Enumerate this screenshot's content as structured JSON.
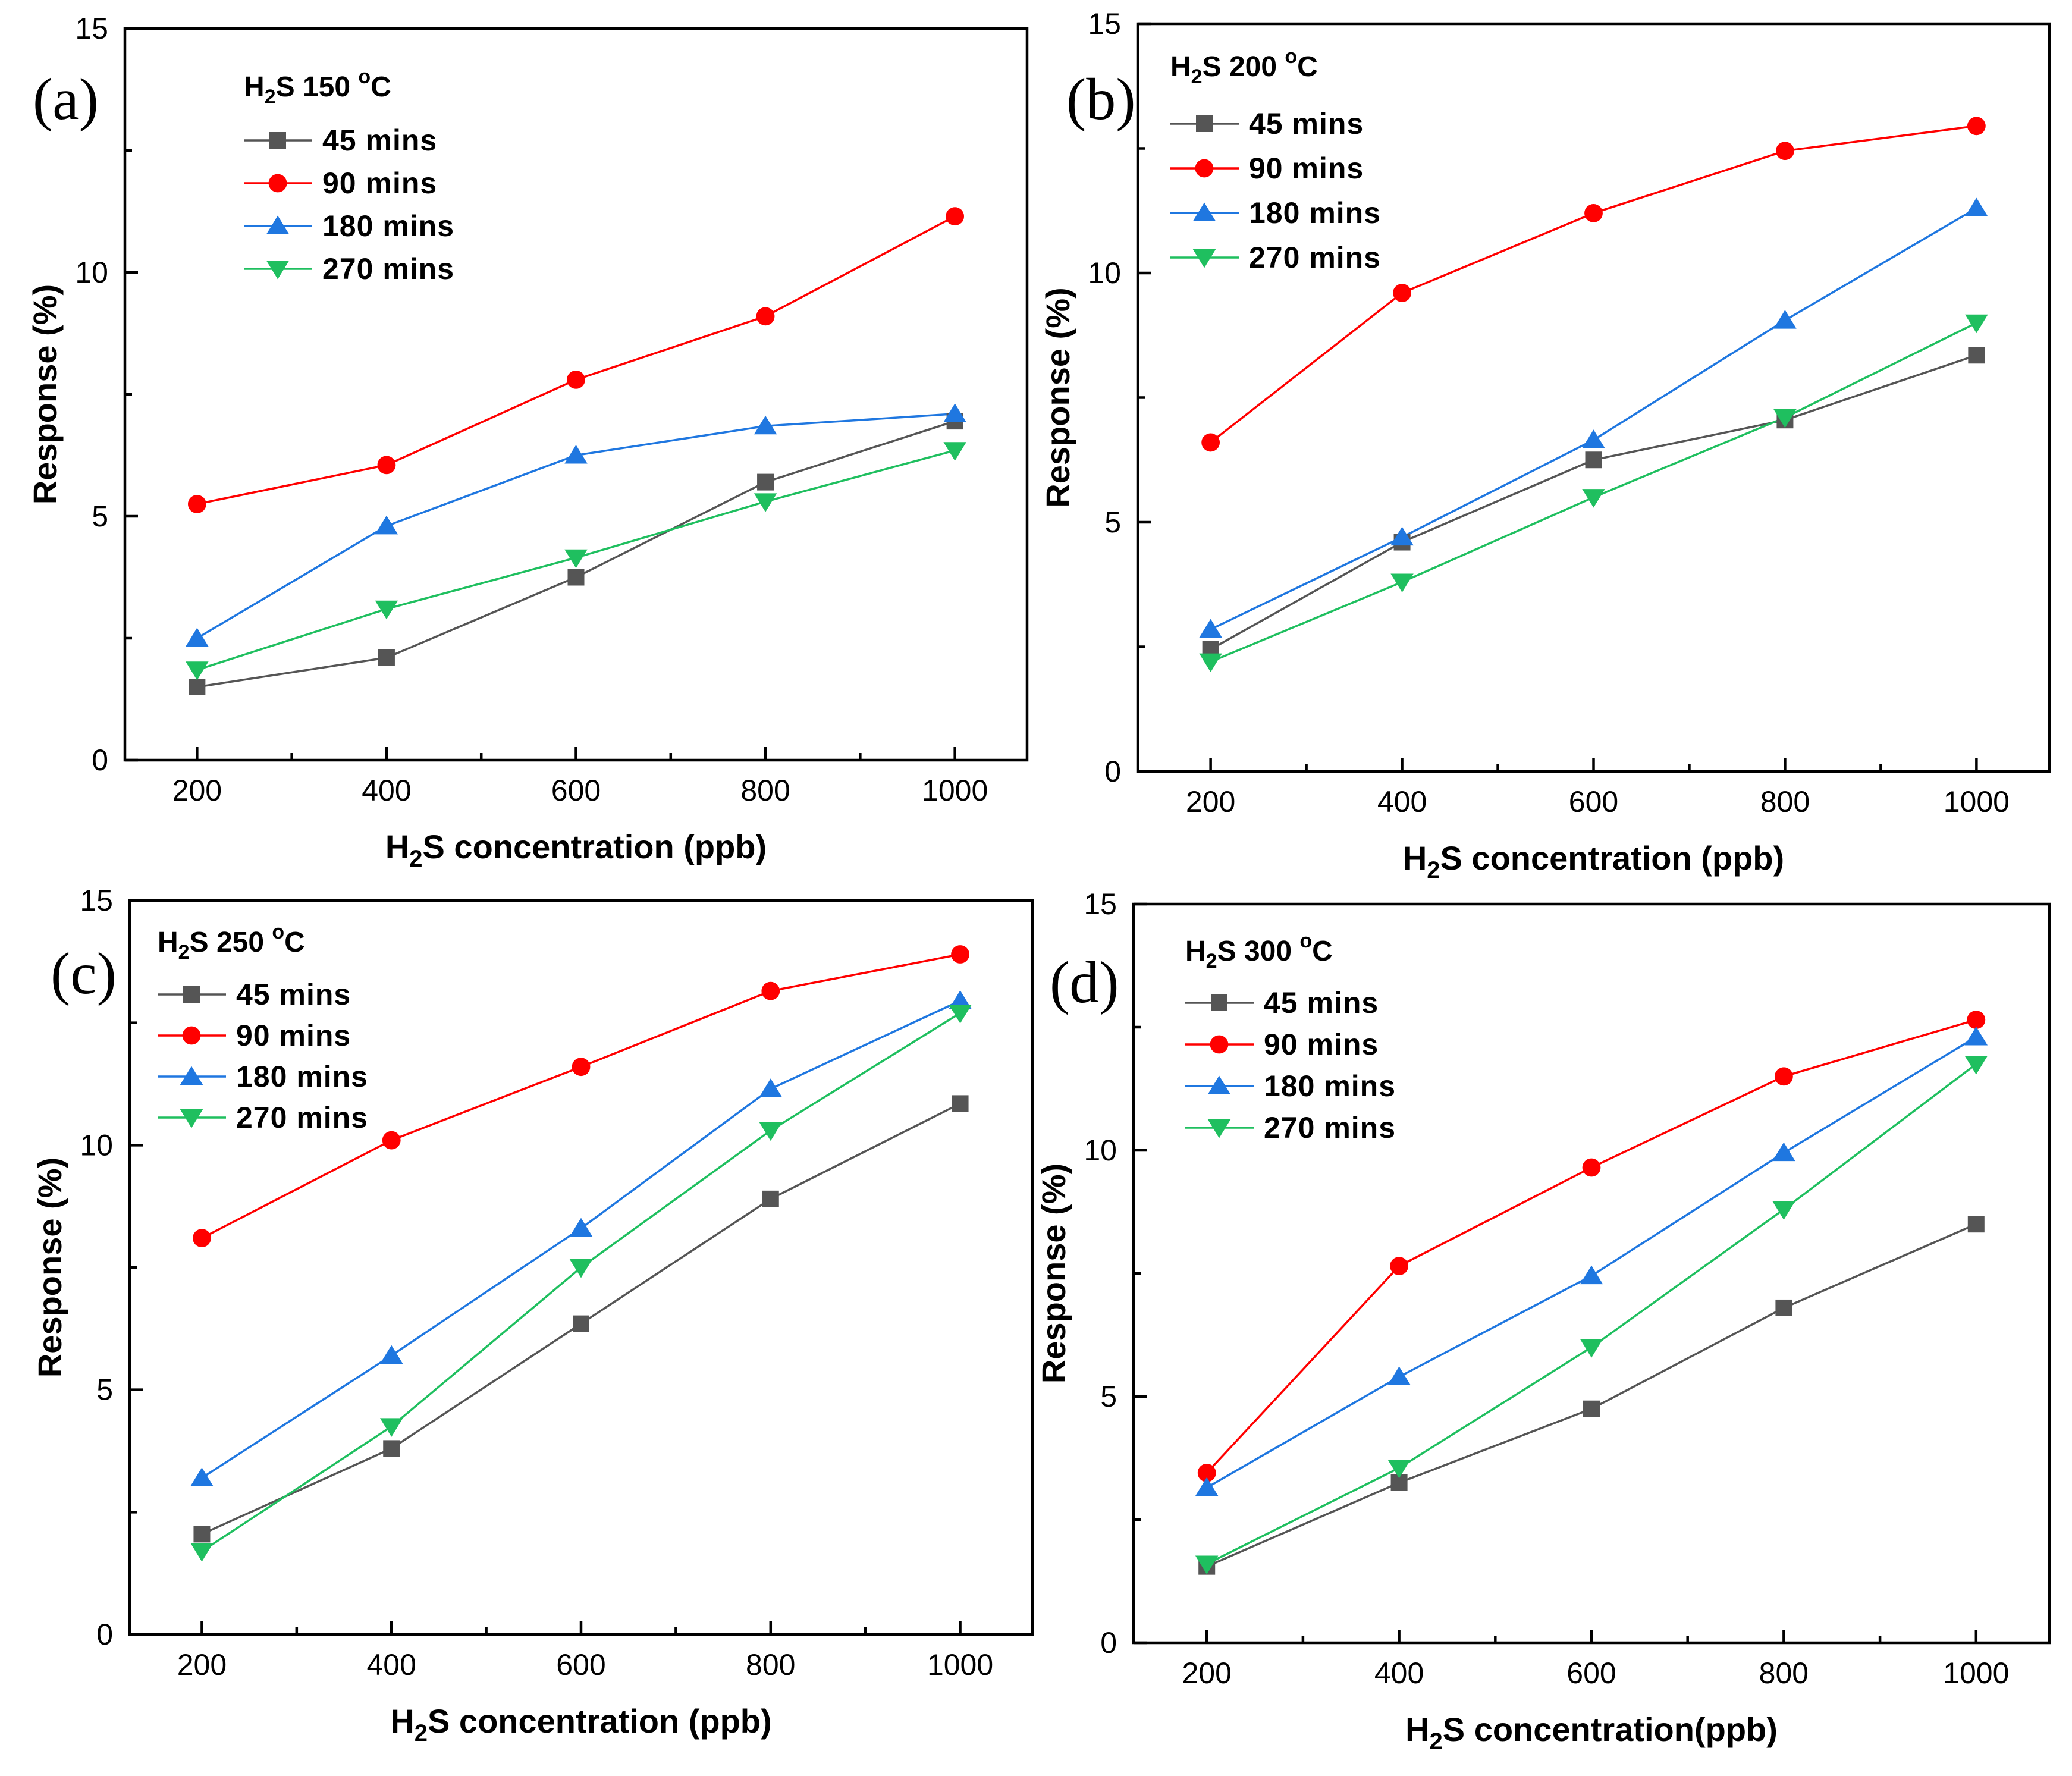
{
  "chart_data": [
    {
      "type": "line",
      "panel_label": "(a)",
      "title": "H2S 150 oC",
      "title_parts": {
        "gas": "H",
        "sub": "2",
        "gas_rest": "S",
        "temperature": "150",
        "degree": "o",
        "unit": "C"
      },
      "xlabel": "H2S concentration (ppb)",
      "xlabel_parts": {
        "pre": "H",
        "sub": "2",
        "post": "S concentration (ppb)"
      },
      "ylabel": "Response (%)",
      "x": [
        200,
        400,
        600,
        800,
        1000
      ],
      "xticks": [
        "200",
        "400",
        "600",
        "800",
        "1000"
      ],
      "ylim": [
        0,
        15
      ],
      "yticks": [
        "0",
        "5",
        "10",
        "15"
      ],
      "series": [
        {
          "name": "45 mins",
          "marker": "square",
          "color": "#555555",
          "values": [
            1.5,
            2.1,
            3.75,
            5.7,
            6.95
          ]
        },
        {
          "name": "90 mins",
          "marker": "circle",
          "color": "#ff0000",
          "values": [
            5.25,
            6.05,
            7.8,
            9.1,
            11.15
          ]
        },
        {
          "name": "180 mins",
          "marker": "triangle-up",
          "color": "#1f77e0",
          "values": [
            2.5,
            4.8,
            6.25,
            6.85,
            7.1
          ]
        },
        {
          "name": "270 mins",
          "marker": "triangle-down",
          "color": "#1fbf5f",
          "values": [
            1.85,
            3.1,
            4.15,
            5.3,
            6.35
          ]
        }
      ]
    },
    {
      "type": "line",
      "panel_label": "(b)",
      "title": "H2S 200 oC",
      "title_parts": {
        "gas": "H",
        "sub": "2",
        "gas_rest": "S",
        "temperature": "200",
        "degree": "o",
        "unit": "C"
      },
      "xlabel": "H2S concentration (ppb)",
      "xlabel_parts": {
        "pre": "H",
        "sub": "2",
        "post": "S concentration (ppb)"
      },
      "ylabel": "Response (%)",
      "x": [
        200,
        400,
        600,
        800,
        1000
      ],
      "xticks": [
        "200",
        "400",
        "600",
        "800",
        "1000"
      ],
      "ylim": [
        0,
        15
      ],
      "yticks": [
        "0",
        "5",
        "10",
        "15"
      ],
      "series": [
        {
          "name": "45 mins",
          "marker": "square",
          "color": "#555555",
          "values": [
            2.45,
            4.6,
            6.25,
            7.05,
            8.35
          ]
        },
        {
          "name": "90 mins",
          "marker": "circle",
          "color": "#ff0000",
          "values": [
            6.6,
            9.6,
            11.2,
            12.45,
            12.95
          ]
        },
        {
          "name": "180 mins",
          "marker": "triangle-up",
          "color": "#1f77e0",
          "values": [
            2.85,
            4.7,
            6.65,
            9.05,
            11.3
          ]
        },
        {
          "name": "270 mins",
          "marker": "triangle-down",
          "color": "#1fbf5f",
          "values": [
            2.2,
            3.8,
            5.5,
            7.1,
            9.0
          ]
        }
      ]
    },
    {
      "type": "line",
      "panel_label": "(c)",
      "title": "H2S 250 oC",
      "title_parts": {
        "gas": "H",
        "sub": "2",
        "gas_rest": "S",
        "temperature": "250",
        "degree": "o",
        "unit": "C"
      },
      "xlabel": "H2S concentration (ppb)",
      "xlabel_parts": {
        "pre": "H",
        "sub": "2",
        "post": "S concentration (ppb)"
      },
      "ylabel": "Response (%)",
      "x": [
        200,
        400,
        600,
        800,
        1000
      ],
      "xticks": [
        "200",
        "400",
        "600",
        "800",
        "1000"
      ],
      "ylim": [
        0,
        15
      ],
      "yticks": [
        "0",
        "5",
        "10",
        "15"
      ],
      "series": [
        {
          "name": "45 mins",
          "marker": "square",
          "color": "#555555",
          "values": [
            2.05,
            3.8,
            6.35,
            8.9,
            10.85
          ]
        },
        {
          "name": "90 mins",
          "marker": "circle",
          "color": "#ff0000",
          "values": [
            8.1,
            10.1,
            11.6,
            13.15,
            13.9
          ]
        },
        {
          "name": "180 mins",
          "marker": "triangle-up",
          "color": "#1f77e0",
          "values": [
            3.2,
            5.7,
            8.3,
            11.15,
            12.95
          ]
        },
        {
          "name": "270 mins",
          "marker": "triangle-down",
          "color": "#1fbf5f",
          "values": [
            1.7,
            4.25,
            7.5,
            10.3,
            12.7
          ]
        }
      ]
    },
    {
      "type": "line",
      "panel_label": "(d)",
      "title": "H2S 300 oC",
      "title_parts": {
        "gas": "H",
        "sub": "2",
        "gas_rest": "S",
        "temperature": "300",
        "degree": "o",
        "unit": "C"
      },
      "xlabel": "H2S concentration(ppb)",
      "xlabel_parts": {
        "pre": "H",
        "sub": "2",
        "post": "S concentration(ppb)"
      },
      "ylabel": "Response (%)",
      "x": [
        200,
        400,
        600,
        800,
        1000
      ],
      "xticks": [
        "200",
        "400",
        "600",
        "800",
        "1000"
      ],
      "ylim": [
        0,
        15
      ],
      "yticks": [
        "0",
        "5",
        "10",
        "15"
      ],
      "series": [
        {
          "name": "45 mins",
          "marker": "square",
          "color": "#555555",
          "values": [
            1.55,
            3.25,
            4.75,
            6.8,
            8.5
          ]
        },
        {
          "name": "90 mins",
          "marker": "circle",
          "color": "#ff0000",
          "values": [
            3.45,
            7.65,
            9.65,
            11.5,
            12.65
          ]
        },
        {
          "name": "180 mins",
          "marker": "triangle-up",
          "color": "#1f77e0",
          "values": [
            3.15,
            5.4,
            7.45,
            9.95,
            12.3
          ]
        },
        {
          "name": "270 mins",
          "marker": "triangle-down",
          "color": "#1fbf5f",
          "values": [
            1.6,
            3.55,
            6.0,
            8.8,
            11.75
          ]
        }
      ]
    }
  ]
}
